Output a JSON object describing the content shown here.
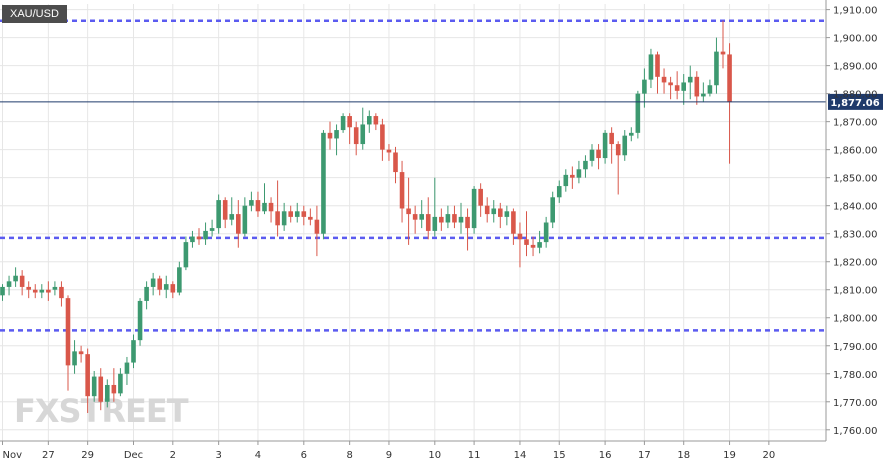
{
  "chart_data": {
    "type": "candlestick",
    "symbol": "XAU/USD",
    "last_price": "1,877.06",
    "watermark": "FXSTREET",
    "ylim": [
      1756,
      1912
    ],
    "y_ticks": [
      "1,760.00",
      "1,770.00",
      "1,780.00",
      "1,790.00",
      "1,800.00",
      "1,810.00",
      "1,820.00",
      "1,830.00",
      "1,840.00",
      "1,850.00",
      "1,860.00",
      "1,870.00",
      "1,880.00",
      "1,890.00",
      "1,900.00",
      "1,910.00"
    ],
    "y_tick_values": [
      1760,
      1770,
      1780,
      1790,
      1800,
      1810,
      1820,
      1830,
      1840,
      1850,
      1860,
      1870,
      1880,
      1890,
      1900,
      1910
    ],
    "x_labels": [
      {
        "label": "Nov",
        "bar": 0
      },
      {
        "label": "27",
        "bar": 7
      },
      {
        "label": "29",
        "bar": 13
      },
      {
        "label": "Dec",
        "bar": 20
      },
      {
        "label": "2",
        "bar": 26
      },
      {
        "label": "3",
        "bar": 33
      },
      {
        "label": "4",
        "bar": 39
      },
      {
        "label": "6",
        "bar": 46
      },
      {
        "label": "8",
        "bar": 53
      },
      {
        "label": "9",
        "bar": 59
      },
      {
        "label": "10",
        "bar": 66
      },
      {
        "label": "11",
        "bar": 72
      },
      {
        "label": "14",
        "bar": 79
      },
      {
        "label": "15",
        "bar": 85
      },
      {
        "label": "16",
        "bar": 92
      },
      {
        "label": "17",
        "bar": 98
      },
      {
        "label": "18",
        "bar": 104
      },
      {
        "label": "19",
        "bar": 111
      },
      {
        "label": "20",
        "bar": 117
      }
    ],
    "levels": [
      1906,
      1828.5,
      1795.5
    ],
    "colors": {
      "up": "#3d9970",
      "down": "#d9574a",
      "level": "#5b5bf0",
      "price_line": "#1f3a6b",
      "price_tag": "#1f3a6b",
      "axis_text": "#333333",
      "grid": "#e6e6e6"
    },
    "candles": [
      [
        1808,
        1811,
        1806,
        1812
      ],
      [
        1811,
        1813,
        1808,
        1815
      ],
      [
        1813,
        1815,
        1811,
        1818
      ],
      [
        1815,
        1811,
        1808,
        1817
      ],
      [
        1811,
        1810,
        1807,
        1813
      ],
      [
        1810,
        1809,
        1807,
        1812
      ],
      [
        1809,
        1810,
        1807,
        1812
      ],
      [
        1810,
        1809,
        1806,
        1813
      ],
      [
        1810,
        1811,
        1808,
        1813
      ],
      [
        1811,
        1807,
        1804,
        1813
      ],
      [
        1807,
        1783,
        1774,
        1808
      ],
      [
        1783,
        1788,
        1780,
        1792
      ],
      [
        1788,
        1787,
        1784,
        1790
      ],
      [
        1787,
        1772,
        1766,
        1789
      ],
      [
        1772,
        1779,
        1770,
        1781
      ],
      [
        1779,
        1770,
        1767,
        1782
      ],
      [
        1770,
        1776,
        1768,
        1778
      ],
      [
        1776,
        1773,
        1770,
        1782
      ],
      [
        1773,
        1780,
        1772,
        1782
      ],
      [
        1780,
        1784,
        1776,
        1786
      ],
      [
        1784,
        1792,
        1782,
        1794
      ],
      [
        1792,
        1806,
        1790,
        1807
      ],
      [
        1806,
        1811,
        1803,
        1813
      ],
      [
        1811,
        1814,
        1808,
        1816
      ],
      [
        1814,
        1810,
        1808,
        1815
      ],
      [
        1810,
        1812,
        1807,
        1815
      ],
      [
        1812,
        1809,
        1807,
        1813
      ],
      [
        1809,
        1818,
        1808,
        1820
      ],
      [
        1818,
        1827,
        1817,
        1829
      ],
      [
        1827,
        1829,
        1825,
        1831
      ],
      [
        1829,
        1828,
        1826,
        1832
      ],
      [
        1828,
        1831,
        1826,
        1834
      ],
      [
        1831,
        1832,
        1829,
        1835
      ],
      [
        1832,
        1842,
        1830,
        1844
      ],
      [
        1842,
        1835,
        1832,
        1843
      ],
      [
        1835,
        1837,
        1833,
        1843
      ],
      [
        1837,
        1830,
        1825,
        1842
      ],
      [
        1830,
        1840,
        1829,
        1843
      ],
      [
        1840,
        1842,
        1838,
        1845
      ],
      [
        1842,
        1838,
        1836,
        1845
      ],
      [
        1838,
        1841,
        1837,
        1848
      ],
      [
        1841,
        1838,
        1834,
        1843
      ],
      [
        1838,
        1833,
        1829,
        1849
      ],
      [
        1833,
        1838,
        1831,
        1841
      ],
      [
        1838,
        1836,
        1834,
        1840
      ],
      [
        1836,
        1838,
        1834,
        1841
      ],
      [
        1838,
        1836,
        1833,
        1840
      ],
      [
        1836,
        1835,
        1833,
        1839
      ],
      [
        1835,
        1830,
        1822,
        1840
      ],
      [
        1830,
        1866,
        1828,
        1867
      ],
      [
        1866,
        1864,
        1860,
        1870
      ],
      [
        1864,
        1867,
        1858,
        1869
      ],
      [
        1867,
        1872,
        1866,
        1873
      ],
      [
        1872,
        1868,
        1862,
        1873
      ],
      [
        1868,
        1862,
        1858,
        1870
      ],
      [
        1862,
        1869,
        1860,
        1875
      ],
      [
        1869,
        1872,
        1866,
        1874
      ],
      [
        1872,
        1869,
        1867,
        1873
      ],
      [
        1869,
        1860,
        1856,
        1871
      ],
      [
        1860,
        1859,
        1856,
        1862
      ],
      [
        1859,
        1852,
        1848,
        1861
      ],
      [
        1852,
        1839,
        1834,
        1856
      ],
      [
        1839,
        1837,
        1826,
        1850
      ],
      [
        1837,
        1835,
        1830,
        1840
      ],
      [
        1835,
        1837,
        1832,
        1842
      ],
      [
        1837,
        1831,
        1828,
        1843
      ],
      [
        1831,
        1836,
        1829,
        1850
      ],
      [
        1836,
        1834,
        1831,
        1839
      ],
      [
        1834,
        1837,
        1832,
        1840
      ],
      [
        1837,
        1834,
        1832,
        1840
      ],
      [
        1834,
        1836,
        1830,
        1841
      ],
      [
        1836,
        1832,
        1824,
        1839
      ],
      [
        1832,
        1846,
        1830,
        1847
      ],
      [
        1846,
        1840,
        1836,
        1848
      ],
      [
        1840,
        1837,
        1834,
        1843
      ],
      [
        1837,
        1839,
        1834,
        1842
      ],
      [
        1839,
        1836,
        1832,
        1841
      ],
      [
        1836,
        1838,
        1833,
        1840
      ],
      [
        1838,
        1830,
        1826,
        1839
      ],
      [
        1830,
        1828,
        1818,
        1834
      ],
      [
        1828,
        1826,
        1822,
        1838
      ],
      [
        1826,
        1825,
        1822,
        1829
      ],
      [
        1825,
        1827,
        1823,
        1831
      ],
      [
        1827,
        1834,
        1825,
        1836
      ],
      [
        1834,
        1843,
        1832,
        1845
      ],
      [
        1843,
        1847,
        1841,
        1849
      ],
      [
        1847,
        1851,
        1845,
        1853
      ],
      [
        1851,
        1850,
        1846,
        1854
      ],
      [
        1850,
        1853,
        1848,
        1856
      ],
      [
        1853,
        1856,
        1850,
        1858
      ],
      [
        1856,
        1860,
        1854,
        1862
      ],
      [
        1860,
        1857,
        1853,
        1862
      ],
      [
        1857,
        1866,
        1855,
        1867
      ],
      [
        1866,
        1862,
        1855,
        1868
      ],
      [
        1862,
        1858,
        1844,
        1863
      ],
      [
        1858,
        1865,
        1856,
        1867
      ],
      [
        1865,
        1866,
        1863,
        1868
      ],
      [
        1866,
        1880,
        1864,
        1881
      ],
      [
        1880,
        1885,
        1875,
        1889
      ],
      [
        1885,
        1894,
        1882,
        1896
      ],
      [
        1894,
        1886,
        1880,
        1895
      ],
      [
        1886,
        1884,
        1880,
        1889
      ],
      [
        1884,
        1883,
        1878,
        1886
      ],
      [
        1883,
        1881,
        1878,
        1888
      ],
      [
        1881,
        1884,
        1876,
        1887
      ],
      [
        1884,
        1886,
        1878,
        1890
      ],
      [
        1886,
        1879,
        1876,
        1888
      ],
      [
        1879,
        1880,
        1877,
        1884
      ],
      [
        1880,
        1883,
        1879,
        1885
      ],
      [
        1883,
        1895,
        1880,
        1900
      ],
      [
        1895,
        1894,
        1889,
        1906
      ],
      [
        1894,
        1877,
        1855,
        1898
      ]
    ]
  }
}
